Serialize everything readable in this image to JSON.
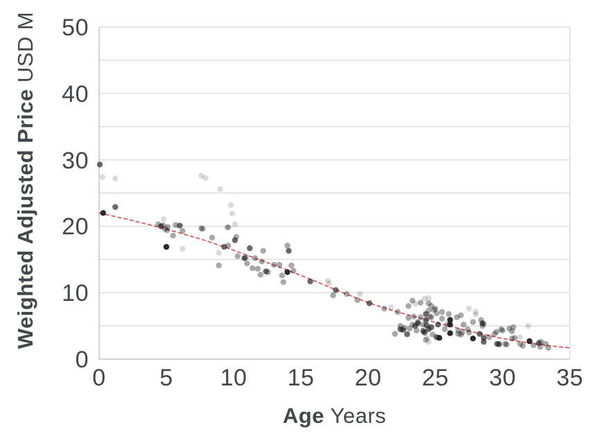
{
  "colors": {
    "background": "#ffffff",
    "text": "#43464b",
    "gridline": "#dcdcdc",
    "axis_line": "#c6c6c6",
    "point": "#1b1b1b",
    "trend": "#e04b4b"
  },
  "chart_data": {
    "type": "scatter",
    "title": "",
    "xlabel": "Age Years",
    "xlabel_bold": "Age",
    "xlabel_rest": "Years",
    "ylabel": "Weighted Adjusted Price USD M",
    "ylabel_bold": "Weighted Adjusted Price",
    "ylabel_rest": "USD M",
    "xlim": [
      0,
      35
    ],
    "ylim": [
      0,
      50
    ],
    "x_ticks": [
      0,
      5,
      10,
      15,
      20,
      25,
      30,
      35
    ],
    "y_ticks": [
      0,
      10,
      20,
      30,
      40,
      50
    ],
    "gridline_step": 5,
    "grid": "horizontal",
    "legend_position": "none",
    "point_radius": 4.2,
    "shade_opacity": {
      "l": 0.16,
      "m": 0.38,
      "d": 0.66,
      "b": 0.93
    },
    "trend_line": {
      "color": "#e04b4b",
      "style": "dashed",
      "points": [
        [
          0,
          22.0
        ],
        [
          2,
          21.1
        ],
        [
          4,
          20.1
        ],
        [
          6,
          19.0
        ],
        [
          8,
          17.8
        ],
        [
          10,
          16.4
        ],
        [
          12,
          14.9
        ],
        [
          14,
          13.4
        ],
        [
          16,
          11.8
        ],
        [
          18,
          10.1
        ],
        [
          20,
          8.5
        ],
        [
          22,
          7.2
        ],
        [
          24,
          6.1
        ],
        [
          26,
          5.0
        ],
        [
          28,
          4.0
        ],
        [
          30,
          3.1
        ],
        [
          32,
          2.4
        ],
        [
          34,
          1.9
        ],
        [
          35,
          1.7
        ]
      ]
    },
    "points": [
      [
        0.05,
        29.3,
        "d"
      ],
      [
        0.25,
        27.4,
        "l"
      ],
      [
        1.2,
        27.2,
        "l"
      ],
      [
        1.2,
        22.9,
        "d"
      ],
      [
        0.3,
        22.0,
        "b"
      ],
      [
        4.8,
        21.1,
        "l"
      ],
      [
        4.4,
        20.3,
        "m"
      ],
      [
        4.6,
        20.0,
        "d"
      ],
      [
        4.75,
        20.15,
        "m"
      ],
      [
        4.9,
        19.6,
        "m"
      ],
      [
        5.05,
        19.4,
        "m"
      ],
      [
        5.1,
        19.9,
        "m"
      ],
      [
        5.7,
        20.2,
        "m"
      ],
      [
        6.0,
        20.1,
        "d"
      ],
      [
        6.2,
        19.3,
        "m"
      ],
      [
        5.5,
        18.6,
        "m"
      ],
      [
        5.0,
        16.9,
        "b"
      ],
      [
        6.2,
        16.6,
        "l"
      ],
      [
        7.6,
        27.6,
        "l"
      ],
      [
        7.9,
        27.3,
        "l"
      ],
      [
        9.0,
        25.6,
        "l"
      ],
      [
        9.8,
        23.2,
        "l"
      ],
      [
        9.9,
        21.9,
        "l"
      ],
      [
        10.1,
        20.3,
        "l"
      ],
      [
        7.6,
        19.7,
        "m"
      ],
      [
        7.7,
        19.6,
        "m"
      ],
      [
        9.5,
        19.8,
        "l"
      ],
      [
        9.6,
        19.85,
        "m"
      ],
      [
        8.4,
        18.3,
        "m"
      ],
      [
        10.2,
        18.4,
        "m"
      ],
      [
        10.1,
        17.9,
        "d"
      ],
      [
        9.3,
        16.9,
        "d"
      ],
      [
        8.9,
        16.0,
        "l"
      ],
      [
        9.6,
        17.1,
        "m"
      ],
      [
        10.3,
        15.5,
        "m"
      ],
      [
        8.9,
        14.1,
        "m"
      ],
      [
        10.9,
        15.3,
        "m"
      ],
      [
        11.2,
        16.7,
        "d"
      ],
      [
        10.8,
        15.2,
        "d"
      ],
      [
        11.0,
        14.4,
        "m"
      ],
      [
        11.6,
        15.2,
        "m"
      ],
      [
        11.4,
        13.7,
        "m"
      ],
      [
        11.8,
        13.6,
        "m"
      ],
      [
        12.2,
        16.3,
        "m"
      ],
      [
        12.1,
        14.7,
        "m"
      ],
      [
        12.4,
        13.2,
        "d"
      ],
      [
        12.55,
        13.1,
        "m"
      ],
      [
        12.0,
        12.7,
        "m"
      ],
      [
        13.0,
        14.2,
        "m"
      ],
      [
        13.4,
        14.2,
        "m"
      ],
      [
        14.0,
        17.1,
        "m"
      ],
      [
        14.1,
        16.3,
        "d"
      ],
      [
        14.3,
        14.1,
        "m"
      ],
      [
        14.45,
        13.3,
        "m"
      ],
      [
        14.0,
        13.1,
        "b"
      ],
      [
        13.6,
        12.6,
        "m"
      ],
      [
        13.7,
        11.6,
        "m"
      ],
      [
        15.7,
        11.7,
        "d"
      ],
      [
        17.0,
        11.8,
        "l"
      ],
      [
        17.1,
        11.4,
        "l"
      ],
      [
        17.6,
        10.4,
        "d"
      ],
      [
        17.4,
        9.6,
        "m"
      ],
      [
        18.4,
        9.8,
        "m"
      ],
      [
        19.4,
        9.8,
        "l"
      ],
      [
        19.2,
        8.9,
        "m"
      ],
      [
        20.1,
        8.4,
        "d"
      ],
      [
        21.2,
        7.6,
        "m"
      ],
      [
        21.7,
        7.8,
        "l"
      ],
      [
        22.2,
        7.1,
        "m"
      ],
      [
        22.0,
        3.8,
        "m"
      ],
      [
        22.4,
        4.5,
        "d"
      ],
      [
        22.6,
        4.4,
        "d"
      ],
      [
        22.9,
        3.75,
        "d"
      ],
      [
        23.1,
        4.6,
        "m"
      ],
      [
        22.4,
        5.0,
        "m"
      ],
      [
        22.7,
        4.7,
        "m"
      ],
      [
        23.5,
        5.0,
        "d"
      ],
      [
        23.7,
        5.6,
        "m"
      ],
      [
        23.0,
        6.2,
        "m"
      ],
      [
        23.3,
        8.8,
        "m"
      ],
      [
        23.0,
        8.0,
        "m"
      ],
      [
        23.9,
        8.5,
        "m"
      ],
      [
        23.5,
        8.3,
        "l"
      ],
      [
        24.5,
        9.2,
        "l"
      ],
      [
        24.2,
        9.1,
        "l"
      ],
      [
        24.5,
        8.4,
        "m"
      ],
      [
        24.7,
        8.0,
        "m"
      ],
      [
        23.4,
        6.4,
        "m"
      ],
      [
        23.9,
        6.3,
        "m"
      ],
      [
        24.3,
        6.8,
        "d"
      ],
      [
        24.6,
        6.4,
        "m"
      ],
      [
        24.5,
        7.3,
        "m"
      ],
      [
        25.0,
        7.6,
        "m"
      ],
      [
        24.9,
        7.4,
        "m"
      ],
      [
        25.5,
        7.1,
        "m"
      ],
      [
        24.3,
        5.9,
        "d"
      ],
      [
        24.35,
        5.1,
        "d"
      ],
      [
        24.5,
        4.5,
        "d"
      ],
      [
        24.2,
        4.0,
        "d"
      ],
      [
        24.4,
        3.2,
        "l"
      ],
      [
        24.5,
        2.6,
        "l"
      ],
      [
        23.7,
        5.4,
        "d"
      ],
      [
        24.1,
        4.25,
        "d"
      ],
      [
        24.7,
        4.8,
        "d"
      ],
      [
        24.1,
        5.2,
        "m"
      ],
      [
        23.3,
        5.2,
        "m"
      ],
      [
        23.6,
        4.3,
        "m"
      ],
      [
        24.8,
        3.7,
        "m"
      ],
      [
        24.3,
        2.9,
        "m"
      ],
      [
        24.7,
        6.3,
        "m"
      ],
      [
        25.1,
        6.9,
        "m"
      ],
      [
        25.2,
        5.2,
        "d"
      ],
      [
        25.3,
        3.2,
        "b"
      ],
      [
        25.1,
        3.3,
        "d"
      ],
      [
        25.7,
        4.5,
        "m"
      ],
      [
        25.9,
        5.2,
        "m"
      ],
      [
        26.1,
        5.9,
        "b"
      ],
      [
        26.1,
        5.2,
        "b"
      ],
      [
        26.1,
        3.9,
        "b"
      ],
      [
        25.5,
        6.1,
        "m"
      ],
      [
        26.0,
        6.8,
        "m"
      ],
      [
        26.6,
        6.3,
        "m"
      ],
      [
        26.9,
        6.6,
        "m"
      ],
      [
        27.1,
        5.2,
        "m"
      ],
      [
        27.4,
        4.5,
        "m"
      ],
      [
        27.8,
        5.6,
        "m"
      ],
      [
        27.0,
        4.0,
        "m"
      ],
      [
        26.7,
        3.8,
        "m"
      ],
      [
        26.7,
        4.3,
        "m"
      ],
      [
        26.9,
        3.7,
        "m"
      ],
      [
        27.5,
        4.0,
        "m"
      ],
      [
        27.5,
        7.6,
        "l"
      ],
      [
        28.0,
        7.1,
        "l"
      ],
      [
        28.0,
        6.7,
        "l"
      ],
      [
        28.4,
        5.9,
        "m"
      ],
      [
        28.5,
        5.4,
        "d"
      ],
      [
        28.6,
        5.3,
        "m"
      ],
      [
        28.5,
        5.0,
        "m"
      ],
      [
        27.8,
        3.1,
        "b"
      ],
      [
        28.3,
        3.8,
        "d"
      ],
      [
        28.6,
        3.2,
        "d"
      ],
      [
        28.6,
        2.6,
        "d"
      ],
      [
        29.0,
        3.3,
        "m"
      ],
      [
        29.4,
        3.8,
        "m"
      ],
      [
        29.55,
        4.1,
        "m"
      ],
      [
        30.0,
        4.3,
        "m"
      ],
      [
        30.5,
        4.6,
        "m"
      ],
      [
        30.8,
        4.8,
        "m"
      ],
      [
        29.9,
        4.5,
        "m"
      ],
      [
        29.6,
        2.3,
        "d"
      ],
      [
        29.75,
        2.25,
        "d"
      ],
      [
        30.2,
        2.3,
        "m"
      ],
      [
        30.9,
        3.2,
        "m"
      ],
      [
        30.3,
        2.2,
        "m"
      ],
      [
        30.7,
        4.2,
        "m"
      ],
      [
        30.7,
        3.1,
        "m"
      ],
      [
        31.3,
        3.3,
        "l"
      ],
      [
        31.9,
        5.0,
        "l"
      ],
      [
        32.0,
        2.7,
        "b"
      ],
      [
        32.7,
        2.4,
        "d"
      ],
      [
        32.85,
        2.6,
        "m"
      ],
      [
        31.5,
        2.0,
        "m"
      ],
      [
        31.3,
        2.3,
        "m"
      ],
      [
        32.3,
        2.1,
        "m"
      ],
      [
        32.8,
        1.85,
        "m"
      ],
      [
        33.2,
        2.3,
        "m"
      ],
      [
        33.4,
        1.7,
        "m"
      ]
    ]
  }
}
